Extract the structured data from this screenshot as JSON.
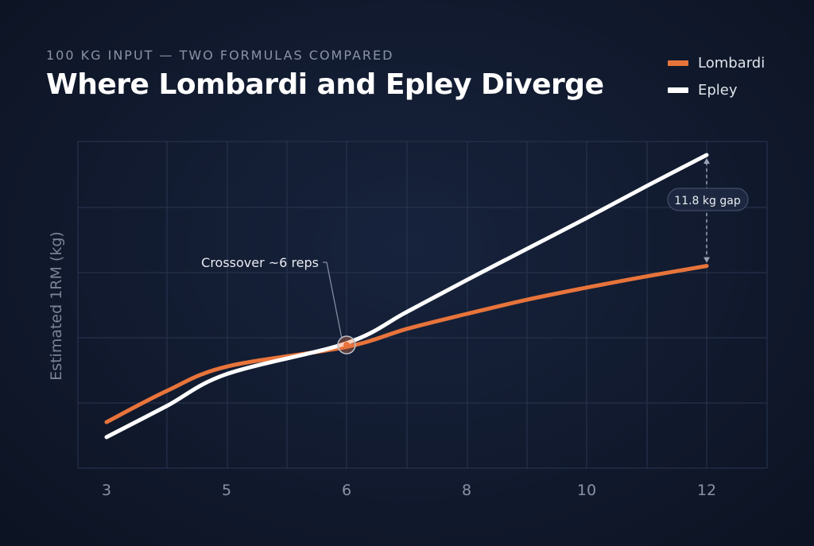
{
  "chart_data": {
    "type": "line",
    "subtitle": "100 KG INPUT — TWO FORMULAS COMPARED",
    "title": "Where Lombardi and Epley Diverge",
    "ylabel": "Estimated 1RM (kg)",
    "xlabel": "",
    "x_ticks": [
      "3",
      "5",
      "6",
      "8",
      "10",
      "12"
    ],
    "x": [
      3,
      4,
      5,
      6,
      7,
      8,
      9,
      10,
      11,
      12
    ],
    "series": [
      {
        "name": "Lombardi",
        "color": "#e8743b",
        "values": [
          111.6,
          114.9,
          117.5,
          119.6,
          121.5,
          123.1,
          124.6,
          125.9,
          127.1,
          128.2
        ]
      },
      {
        "name": "Epley",
        "color": "#ffffff",
        "values": [
          110.0,
          113.3,
          116.7,
          120.0,
          123.3,
          126.7,
          130.0,
          133.3,
          136.7,
          140.0
        ]
      }
    ],
    "annotations": {
      "crossover": {
        "label": "Crossover ~6 reps",
        "x": 6
      },
      "gap": {
        "label": "11.8 kg gap",
        "x": 12
      }
    },
    "grid": true,
    "legend_position": "top-right"
  }
}
